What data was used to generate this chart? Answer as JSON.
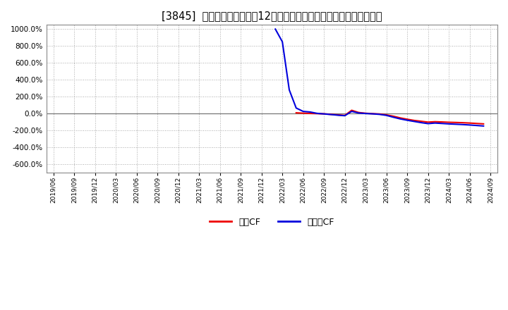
{
  "title": "[3845]  キャッシュフローの12か月移動合計の対前年同期増減率の推移",
  "title_fontsize": 10.5,
  "background_color": "#ffffff",
  "plot_bg_color": "#ffffff",
  "grid_color": "#aaaaaa",
  "ylim": [
    -700,
    1050
  ],
  "yticks": [
    -600,
    -400,
    -200,
    0,
    200,
    400,
    600,
    800,
    1000
  ],
  "legend_labels": [
    "営業CF",
    "フリーCF"
  ],
  "legend_colors": [
    "#ee0000",
    "#0000dd"
  ],
  "op_x": [
    2022.333,
    2022.417,
    2022.5,
    2022.583,
    2022.667,
    2022.75,
    2022.833,
    2022.917,
    2023.0,
    2023.083,
    2023.167,
    2023.25,
    2023.333,
    2023.417,
    2023.5,
    2023.583,
    2023.667,
    2023.75,
    2023.833,
    2023.917,
    2024.0,
    2024.083,
    2024.167,
    2024.25,
    2024.333,
    2024.417,
    2024.5,
    2024.583
  ],
  "op_y": [
    8.0,
    4.0,
    1.0,
    -1.0,
    -4.0,
    -10.0,
    -16.0,
    -22.0,
    38.0,
    12.0,
    3.0,
    -2.0,
    -6.0,
    -16.0,
    -32.0,
    -52.0,
    -68.0,
    -82.0,
    -92.0,
    -102.0,
    -97.0,
    -100.0,
    -104.0,
    -106.0,
    -109.0,
    -113.0,
    -118.0,
    -123.0
  ],
  "free_x": [
    2022.083,
    2022.167,
    2022.25,
    2022.333,
    2022.417,
    2022.5,
    2022.583,
    2022.667,
    2022.75,
    2022.833,
    2022.917,
    2023.0,
    2023.083,
    2023.167,
    2023.25,
    2023.333,
    2023.417,
    2023.5,
    2023.583,
    2023.667,
    2023.75,
    2023.833,
    2023.917,
    2024.0,
    2024.083,
    2024.167,
    2024.25,
    2024.333,
    2024.417,
    2024.5,
    2024.583
  ],
  "free_y": [
    1000.0,
    850.0,
    280.0,
    65.0,
    25.0,
    18.0,
    2.0,
    -5.0,
    -12.0,
    -20.0,
    -26.0,
    25.0,
    6.0,
    0.0,
    -4.0,
    -10.0,
    -22.0,
    -44.0,
    -64.0,
    -80.0,
    -94.0,
    -108.0,
    -120.0,
    -113.0,
    -118.0,
    -123.0,
    -127.0,
    -131.0,
    -136.0,
    -142.0,
    -148.0
  ],
  "xtick_labels": [
    "2019/06",
    "2019/09",
    "2019/12",
    "2020/03",
    "2020/06",
    "2020/09",
    "2020/12",
    "2021/03",
    "2021/06",
    "2021/09",
    "2021/12",
    "2022/03",
    "2022/06",
    "2022/09",
    "2022/12",
    "2023/03",
    "2023/06",
    "2023/09",
    "2023/12",
    "2024/03",
    "2024/06",
    "2024/09"
  ],
  "xtick_pos": [
    2019.417,
    2019.667,
    2019.917,
    2020.167,
    2020.417,
    2020.667,
    2020.917,
    2021.167,
    2021.417,
    2021.667,
    2021.917,
    2022.167,
    2022.417,
    2022.667,
    2022.917,
    2023.167,
    2023.417,
    2023.667,
    2023.917,
    2024.167,
    2024.417,
    2024.667
  ],
  "xlim": [
    2019.333,
    2024.75
  ]
}
